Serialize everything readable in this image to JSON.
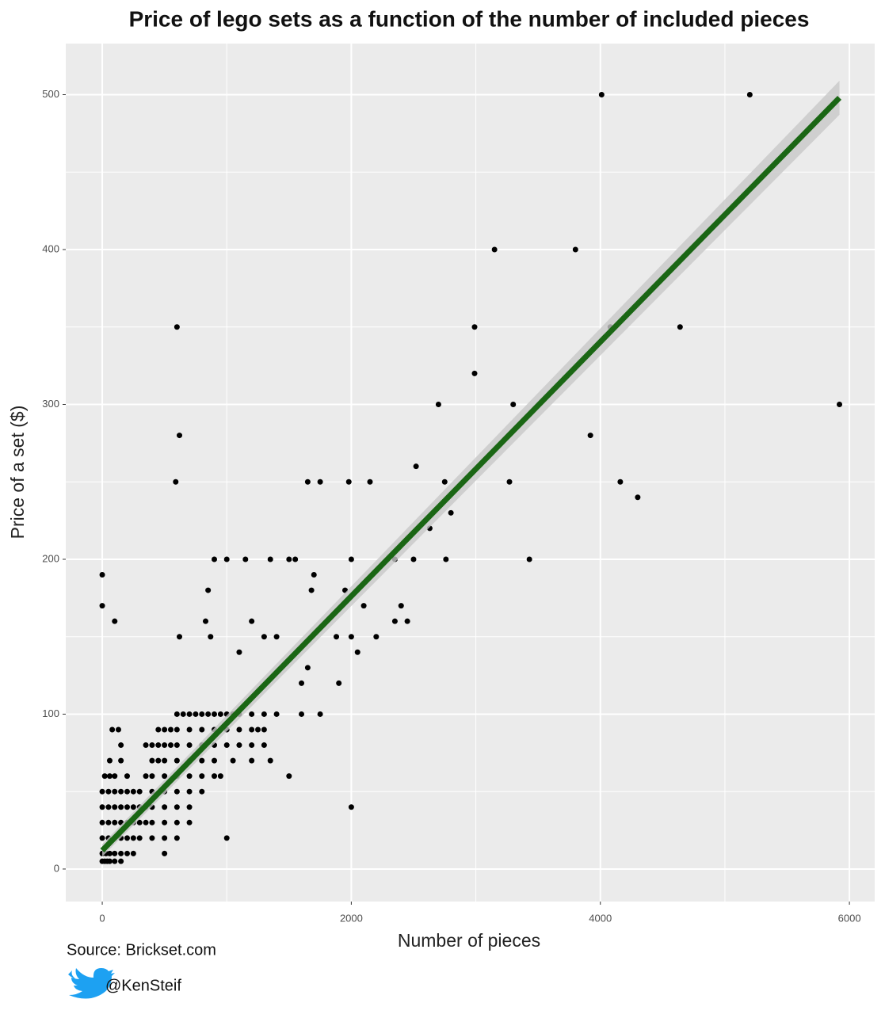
{
  "chart_data": {
    "type": "scatter",
    "title": "Price of lego sets as a function of the number of included pieces",
    "x_label": "Number of pieces",
    "y_label": "Price of a set ($)",
    "source": "Source: Brickset.com",
    "handle": "@KenSteif",
    "xlim": [
      -293,
      6203
    ],
    "ylim": [
      -21,
      533
    ],
    "xticks": [
      0,
      2000,
      4000,
      6000
    ],
    "yticks": [
      0,
      100,
      200,
      300,
      400,
      500
    ],
    "x_minor_grid": [
      1000,
      3000,
      5000
    ],
    "y_minor_grid": [
      50,
      150,
      250,
      350,
      450
    ],
    "grid": true,
    "series": [
      {
        "color": "#000000",
        "x": [
          0,
          0,
          100,
          600,
          620,
          590,
          620,
          830,
          850,
          870,
          900,
          1000,
          1150,
          1000,
          1100,
          1200,
          1300,
          1350,
          1400,
          1500,
          1500,
          1550,
          1600,
          1650,
          1650,
          1680,
          1700,
          1750,
          1750,
          1880,
          1900,
          1950,
          1980,
          2000,
          2000,
          2000,
          2050,
          2100,
          2150,
          2200,
          2350,
          2350,
          2400,
          2450,
          2500,
          2520,
          2630,
          2700,
          2750,
          2760,
          2800,
          2990,
          2990,
          3150,
          3270,
          3300,
          3430,
          3800,
          3920,
          4010,
          4080,
          4160,
          4300,
          4640,
          5200,
          5920,
          600,
          650,
          700,
          750,
          800,
          850,
          900,
          950,
          1000,
          1050,
          1100,
          1200,
          1300,
          1400,
          1600,
          80,
          130,
          450,
          500,
          550,
          600,
          700,
          800,
          900,
          1000,
          1100,
          1200,
          1250,
          1300,
          150,
          350,
          400,
          450,
          500,
          550,
          600,
          700,
          800,
          900,
          1000,
          1100,
          1200,
          1300,
          60,
          150,
          400,
          450,
          500,
          600,
          700,
          800,
          900,
          1050,
          1200,
          1350,
          20,
          60,
          100,
          200,
          350,
          400,
          500,
          600,
          700,
          800,
          900,
          950,
          0,
          50,
          100,
          150,
          200,
          250,
          300,
          400,
          500,
          600,
          700,
          800,
          0,
          50,
          100,
          150,
          200,
          250,
          300,
          350,
          400,
          500,
          600,
          700,
          0,
          50,
          100,
          150,
          200,
          250,
          300,
          350,
          400,
          500,
          600,
          700,
          0,
          50,
          100,
          150,
          200,
          250,
          300,
          400,
          500,
          600,
          0,
          30,
          60,
          100,
          150,
          200,
          250,
          500,
          0,
          20,
          40,
          60,
          100,
          150
        ],
        "values": [
          190,
          170,
          160,
          350,
          280,
          250,
          150,
          160,
          180,
          150,
          200,
          200,
          200,
          20,
          140,
          160,
          150,
          200,
          150,
          200,
          60,
          200,
          120,
          250,
          130,
          180,
          190,
          250,
          100,
          150,
          120,
          180,
          250,
          200,
          40,
          150,
          140,
          170,
          250,
          150,
          160,
          200,
          170,
          160,
          200,
          260,
          220,
          300,
          250,
          200,
          230,
          350,
          320,
          400,
          250,
          300,
          200,
          400,
          280,
          500,
          350,
          250,
          240,
          350,
          500,
          300,
          100,
          100,
          100,
          100,
          100,
          100,
          100,
          100,
          100,
          100,
          100,
          100,
          100,
          100,
          100,
          90,
          90,
          90,
          90,
          90,
          90,
          90,
          90,
          90,
          90,
          90,
          90,
          90,
          90,
          80,
          80,
          80,
          80,
          80,
          80,
          80,
          80,
          80,
          80,
          80,
          80,
          80,
          80,
          70,
          70,
          70,
          70,
          70,
          70,
          70,
          70,
          70,
          70,
          70,
          70,
          60,
          60,
          60,
          60,
          60,
          60,
          60,
          60,
          60,
          60,
          60,
          60,
          50,
          50,
          50,
          50,
          50,
          50,
          50,
          50,
          50,
          50,
          50,
          50,
          40,
          40,
          40,
          40,
          40,
          40,
          40,
          40,
          40,
          40,
          40,
          40,
          30,
          30,
          30,
          30,
          30,
          30,
          30,
          30,
          30,
          30,
          30,
          30,
          20,
          20,
          20,
          20,
          20,
          20,
          20,
          20,
          20,
          20,
          10,
          10,
          10,
          10,
          10,
          10,
          10,
          10,
          5,
          5,
          5,
          5,
          5,
          5
        ]
      }
    ],
    "fit": {
      "color": "#1a6614",
      "band_color": "#c8c8c8",
      "x": [
        0,
        5920
      ],
      "values": [
        12,
        498
      ],
      "lower": [
        8,
        487
      ],
      "upper": [
        16,
        509
      ]
    }
  }
}
